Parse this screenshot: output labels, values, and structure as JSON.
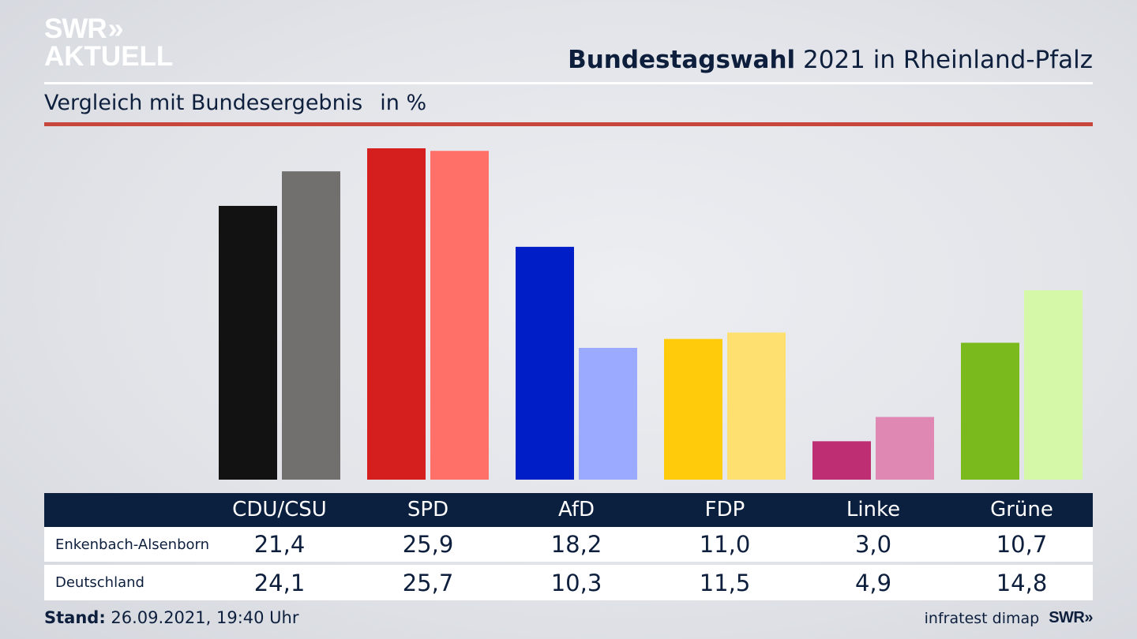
{
  "logo": {
    "line1": "SWR",
    "line1_icon": "»",
    "line2": "AKTUELL"
  },
  "header": {
    "title_bold": "Bundestagswahl",
    "title_rest": " 2021 in Rheinland-Pfalz",
    "subtitle": "Vergleich mit Bundesergebnis",
    "unit": "in %"
  },
  "colors": {
    "title_text": "#0d1f3c",
    "accent_rule": "#c8473c",
    "table_header_bg": "#0b1f3f"
  },
  "chart_data": {
    "type": "bar",
    "title": "Bundestagswahl 2021 in Rheinland-Pfalz",
    "subtitle": "Vergleich mit Bundesergebnis",
    "ylabel": "in %",
    "xlabel": "",
    "ylim": [
      0,
      26
    ],
    "grid": false,
    "legend": "table-below",
    "categories": [
      "CDU/CSU",
      "SPD",
      "AfD",
      "FDP",
      "Linke",
      "Grüne"
    ],
    "series": [
      {
        "name": "Enkenbach-Alsenborn",
        "values": [
          21.4,
          25.9,
          18.2,
          11.0,
          3.0,
          10.7
        ],
        "labels": [
          "21,4",
          "25,9",
          "18,2",
          "11,0",
          "3,0",
          "10,7"
        ],
        "colors": [
          "#121212",
          "#d51f1f",
          "#001ec8",
          "#ffcb0b",
          "#bd2e72",
          "#7aba1c"
        ]
      },
      {
        "name": "Deutschland",
        "values": [
          24.1,
          25.7,
          10.3,
          11.5,
          4.9,
          14.8
        ],
        "labels": [
          "24,1",
          "25,7",
          "10,3",
          "11,5",
          "4,9",
          "14,8"
        ],
        "colors": [
          "#71706e",
          "#ff7069",
          "#9ba9ff",
          "#fde070",
          "#de88b3",
          "#d5f7a8"
        ]
      }
    ]
  },
  "footer": {
    "stand_label": "Stand:",
    "stand_value": " 26.09.2021, 19:40 Uhr",
    "source": "infratest dimap",
    "brand": "SWR»"
  }
}
